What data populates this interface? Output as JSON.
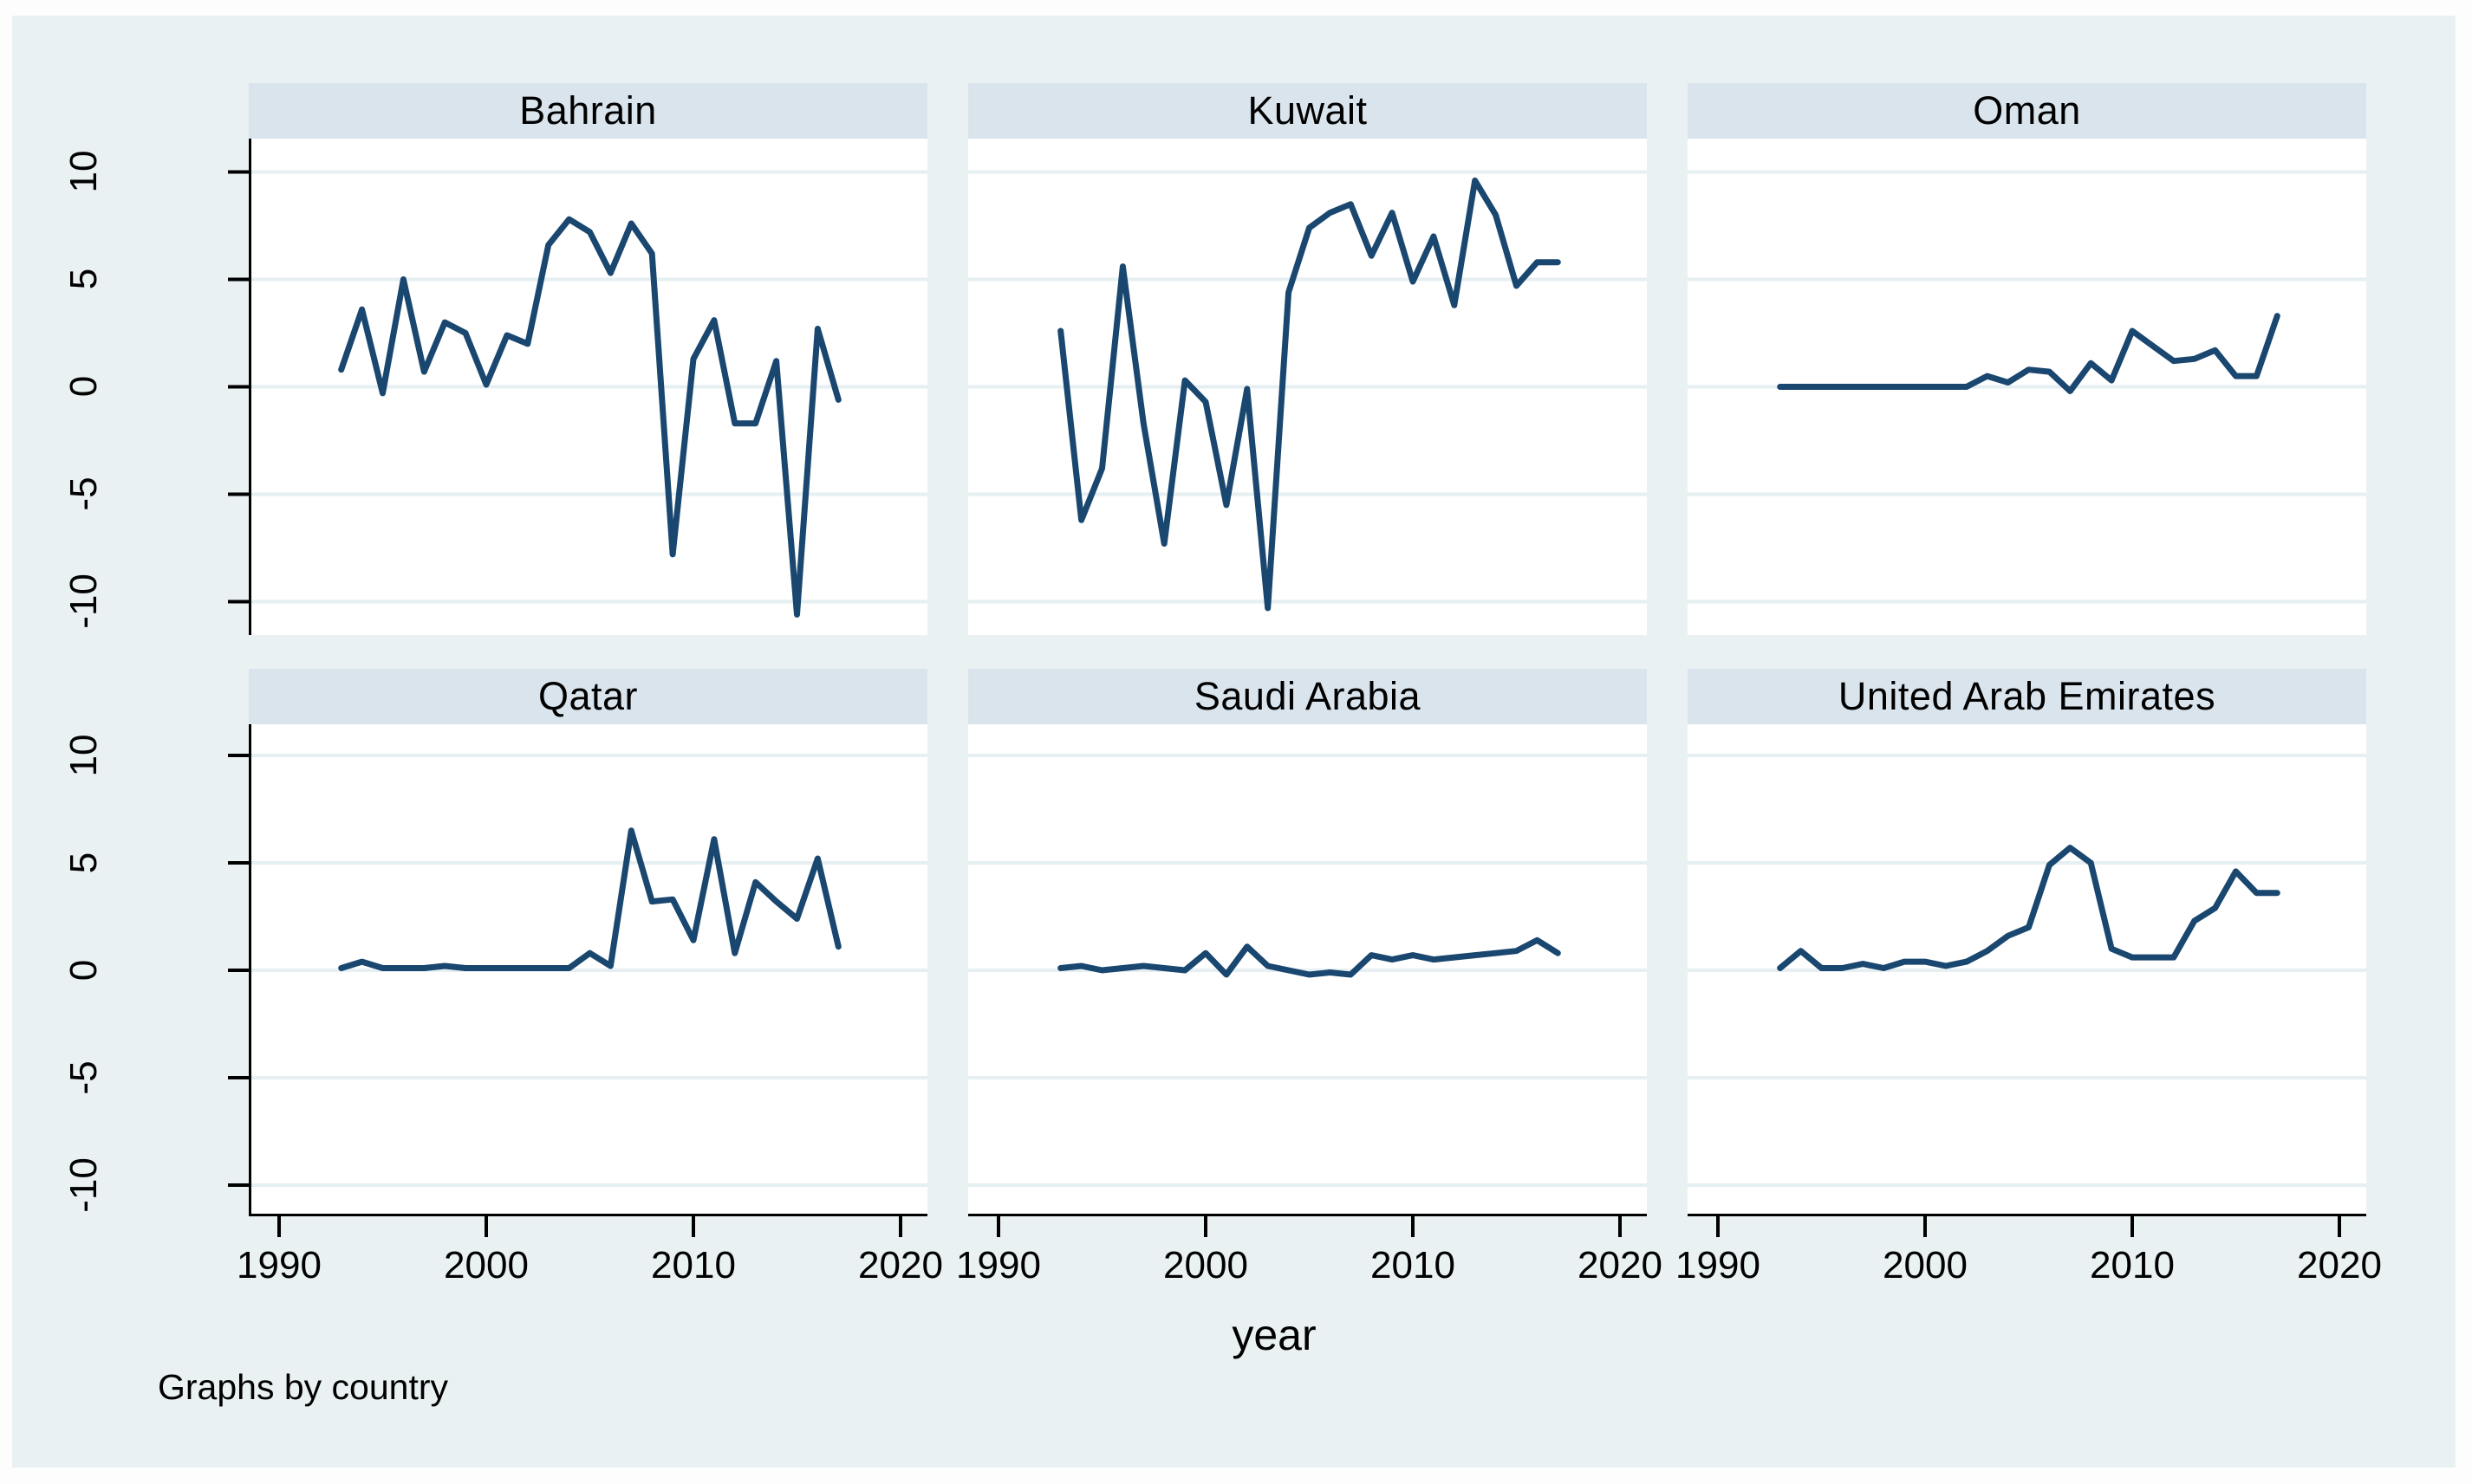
{
  "figure": {
    "note": "Graphs by country",
    "x_axis_title": "year",
    "y_ticks": [
      "10",
      "5",
      "0",
      "-5",
      "-10"
    ],
    "x_ticks": [
      "1990",
      "2000",
      "2010",
      "2020"
    ],
    "colors": {
      "background": "#eaf1f3",
      "panel_background": "#ffffff",
      "title_bar": "#d9e4ec",
      "gridline": "#e6eff2",
      "line": "#1a476f",
      "axis": "#000000"
    }
  },
  "chart_data": {
    "type": "line",
    "title": "",
    "xlabel": "year",
    "ylabel": "",
    "note": "Graphs by country",
    "xlim": [
      1990,
      2020
    ],
    "ylim": [
      -10,
      10
    ],
    "y_gridlines": [
      10,
      5,
      0,
      -5,
      -10
    ],
    "x_tick_values": [
      1990,
      2000,
      2010,
      2020
    ],
    "grid": "horizontal-only",
    "legend_position": "none",
    "x": [
      1993,
      1994,
      1995,
      1996,
      1997,
      1998,
      1999,
      2000,
      2001,
      2002,
      2003,
      2004,
      2005,
      2006,
      2007,
      2008,
      2009,
      2010,
      2011,
      2012,
      2013,
      2014,
      2015,
      2016,
      2017
    ],
    "series": [
      {
        "name": "Bahrain",
        "values": [
          0.8,
          3.6,
          -0.3,
          5.0,
          0.7,
          3.0,
          2.5,
          0.1,
          2.4,
          2.0,
          6.6,
          7.8,
          7.2,
          5.3,
          7.6,
          6.2,
          -7.8,
          1.3,
          3.1,
          -1.7,
          -1.7,
          1.2,
          -10.6,
          2.7,
          -0.6
        ]
      },
      {
        "name": "Kuwait",
        "values": [
          2.6,
          -6.2,
          -3.8,
          5.6,
          -1.7,
          -7.3,
          0.3,
          -0.7,
          -5.5,
          -0.1,
          -10.3,
          4.4,
          7.4,
          8.1,
          8.5,
          6.1,
          8.1,
          4.9,
          7.0,
          3.8,
          9.6,
          8.0,
          4.7,
          5.8,
          5.8
        ]
      },
      {
        "name": "Oman",
        "values": [
          0.0,
          0.0,
          0.0,
          0.0,
          0.0,
          0.0,
          0.0,
          0.0,
          0.0,
          0.0,
          0.5,
          0.2,
          0.8,
          0.7,
          -0.2,
          1.1,
          0.3,
          2.6,
          1.9,
          1.2,
          1.3,
          1.7,
          0.5,
          0.5,
          3.3
        ]
      },
      {
        "name": "Qatar",
        "values": [
          0.1,
          0.4,
          0.1,
          0.1,
          0.1,
          0.2,
          0.1,
          0.1,
          0.1,
          0.1,
          0.1,
          0.1,
          0.8,
          0.2,
          6.5,
          3.2,
          3.3,
          1.4,
          6.1,
          0.8,
          4.1,
          3.2,
          2.4,
          5.2,
          1.1
        ]
      },
      {
        "name": "Saudi Arabia",
        "values": [
          0.1,
          0.2,
          0.0,
          0.1,
          0.2,
          0.1,
          0.0,
          0.8,
          -0.2,
          1.1,
          0.2,
          0.0,
          -0.2,
          -0.1,
          -0.2,
          0.7,
          0.5,
          0.7,
          0.5,
          0.6,
          0.7,
          0.8,
          0.9,
          1.4,
          0.8
        ]
      },
      {
        "name": "United Arab Emirates",
        "values": [
          0.1,
          0.9,
          0.1,
          0.1,
          0.3,
          0.1,
          0.4,
          0.4,
          0.2,
          0.4,
          0.9,
          1.6,
          2.0,
          4.9,
          5.7,
          5.0,
          1.0,
          0.6,
          0.6,
          0.6,
          2.3,
          2.9,
          4.6,
          3.6,
          3.6
        ]
      }
    ]
  }
}
